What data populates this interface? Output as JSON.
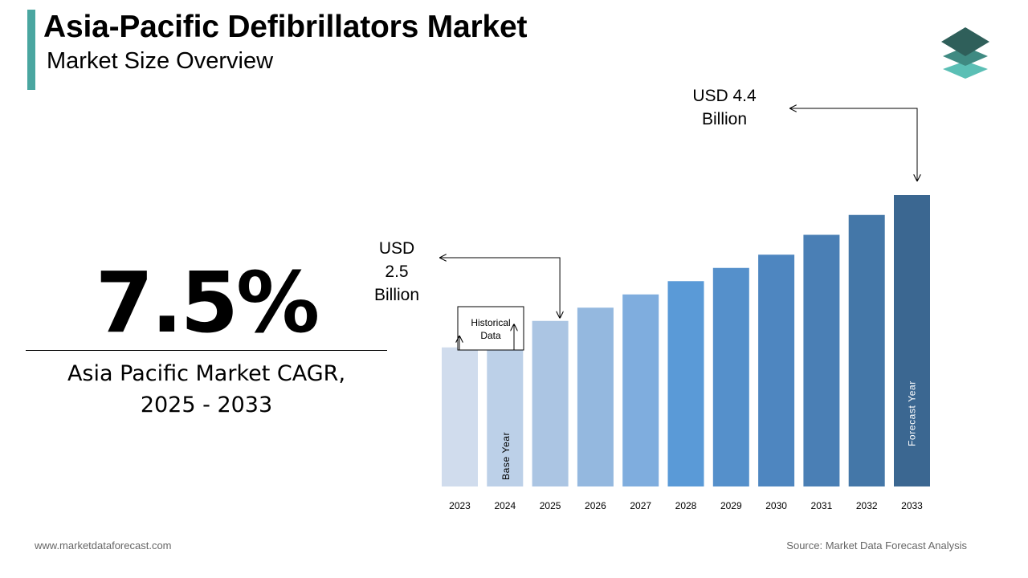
{
  "header": {
    "title": "Asia-Pacific Defibrillators Market",
    "subtitle": "Market Size Overview",
    "accent_color": "#4aa6a0"
  },
  "logo": {
    "icon": "stacked-layers-icon",
    "colors": [
      "#2f5f5a",
      "#3f8a82",
      "#5bbfb5"
    ]
  },
  "cagr": {
    "value": "7.5%",
    "label_line1": "Asia Pacific Market CAGR,",
    "label_line2": "2025 - 2033"
  },
  "chart_data": {
    "type": "bar",
    "categories": [
      "2023",
      "2024",
      "2025",
      "2026",
      "2027",
      "2028",
      "2029",
      "2030",
      "2031",
      "2032",
      "2033"
    ],
    "values": [
      2.1,
      2.3,
      2.5,
      2.7,
      2.9,
      3.1,
      3.3,
      3.5,
      3.8,
      4.1,
      4.4
    ],
    "colors": [
      "#d0dced",
      "#bcd0e8",
      "#abc5e3",
      "#94b8df",
      "#7fadde",
      "#5a9ad7",
      "#5590cb",
      "#4e86c0",
      "#4a7fb5",
      "#4477a8",
      "#3b6791"
    ],
    "unit": "USD Billion",
    "ylim": [
      0,
      4.8
    ],
    "annotations": {
      "historical": "Historical Data",
      "base_year": "Base Year",
      "forecast_year": "Forecast Year",
      "start_value_line1": "USD",
      "start_value_line2": "2.5",
      "start_value_line3": "Billion",
      "end_value_line1": "USD 4.4",
      "end_value_line2": "Billion"
    }
  },
  "footer": {
    "website": "www.marketdataforecast.com",
    "source": "Source: Market Data Forecast Analysis"
  }
}
